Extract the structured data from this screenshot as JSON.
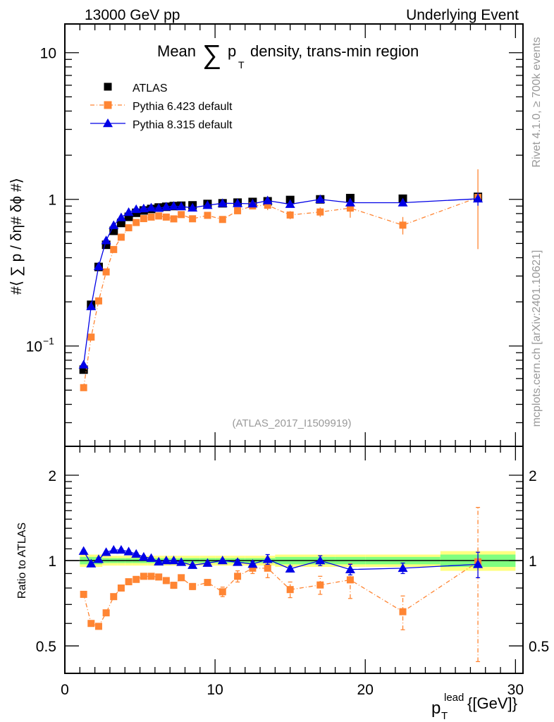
{
  "chart_data": {
    "type": "line",
    "header_left": "13000 GeV pp",
    "header_right": "Underlying Event",
    "title_prefix": "Mean",
    "title_sigma": "∑",
    "title_p": "p",
    "title_sub": "T",
    "title_suffix": "density, trans-min region",
    "ylabel": "#⟨ ∑ p  / δη# δϕ #⟩",
    "ylabel_sub": "T",
    "ratio_ylabel": "Ratio to ATLAS",
    "xlabel_p": "p",
    "xlabel_sup": "lead",
    "xlabel_sub": "T",
    "xlabel_unit": "{[GeV]}",
    "side_text_top": "Rivet 4.1.0, ≥ 700k events",
    "side_text_bottom": "mcplots.cern.ch [arXiv:2401.10621]",
    "analysis_id": "(ATLAS_2017_I1509919)",
    "xlim": [
      0,
      30.5
    ],
    "ylim_main": [
      0.0207,
      15.7
    ],
    "ylim_ratio": [
      0.4,
      2.53
    ],
    "yscale": "log",
    "x_ticks": [
      "0",
      "10",
      "20",
      "30"
    ],
    "y_ticks_main": [
      {
        "v": 0.1,
        "label": "10",
        "exp": "−1"
      },
      {
        "v": 1,
        "label": "1",
        "exp": ""
      },
      {
        "v": 10,
        "label": "10",
        "exp": ""
      }
    ],
    "y_ticks_ratio": [
      {
        "v": 0.5,
        "label": "0.5"
      },
      {
        "v": 1,
        "label": "1"
      },
      {
        "v": 2,
        "label": "2"
      }
    ],
    "legend": [
      {
        "name": "ATLAS",
        "color": "#000000",
        "marker": "square"
      },
      {
        "name": "Pythia 6.423 default",
        "color": "#ff8533",
        "marker": "square",
        "dash": "dashdot"
      },
      {
        "name": "Pythia 8.315 default",
        "color": "#0000e6",
        "marker": "triangle"
      }
    ],
    "x": [
      1.25,
      1.75,
      2.25,
      2.75,
      3.25,
      3.75,
      4.25,
      4.75,
      5.25,
      5.75,
      6.25,
      6.75,
      7.25,
      7.75,
      8.5,
      9.5,
      10.5,
      11.5,
      12.5,
      13.5,
      15,
      17,
      19,
      22.5,
      27.5
    ],
    "bin_edges": [
      1,
      1.5,
      2,
      2.5,
      3,
      3.5,
      4,
      4.5,
      5,
      5.5,
      6,
      6.5,
      7,
      7.5,
      8,
      9,
      10,
      11,
      12,
      13,
      14,
      16,
      18,
      20,
      25,
      30
    ],
    "series": [
      {
        "name": "ATLAS",
        "values": [
          0.069,
          0.191,
          0.346,
          0.49,
          0.61,
          0.69,
          0.76,
          0.81,
          0.84,
          0.86,
          0.88,
          0.89,
          0.9,
          0.905,
          0.91,
          0.93,
          0.94,
          0.95,
          0.96,
          0.97,
          0.99,
          1.0,
          1.02,
          1.01,
          1.04
        ],
        "ratio_band_yellow": [
          0.05,
          0.05,
          0.05,
          0.04,
          0.04,
          0.04,
          0.04,
          0.04,
          0.04,
          0.04,
          0.04,
          0.04,
          0.04,
          0.04,
          0.04,
          0.04,
          0.04,
          0.04,
          0.04,
          0.04,
          0.05,
          0.05,
          0.05,
          0.05,
          0.08
        ],
        "ratio_band_green": [
          0.03,
          0.03,
          0.03,
          0.02,
          0.02,
          0.02,
          0.02,
          0.02,
          0.02,
          0.02,
          0.02,
          0.02,
          0.02,
          0.02,
          0.02,
          0.02,
          0.02,
          0.02,
          0.02,
          0.02,
          0.03,
          0.03,
          0.03,
          0.03,
          0.05
        ]
      },
      {
        "name": "Pythia 6.423 default",
        "values": [
          0.052,
          0.115,
          0.203,
          0.32,
          0.455,
          0.552,
          0.64,
          0.695,
          0.739,
          0.757,
          0.77,
          0.757,
          0.736,
          0.787,
          0.737,
          0.778,
          0.729,
          0.836,
          0.902,
          0.912,
          0.782,
          0.82,
          0.872,
          0.667,
          1.03
        ],
        "ratio": [
          0.76,
          0.6,
          0.586,
          0.654,
          0.746,
          0.8,
          0.842,
          0.858,
          0.88,
          0.88,
          0.875,
          0.85,
          0.818,
          0.87,
          0.81,
          0.837,
          0.776,
          0.88,
          0.94,
          0.94,
          0.79,
          0.82,
          0.855,
          0.66,
          0.99
        ],
        "ratio_err": [
          0.01,
          0.01,
          0.01,
          0.01,
          0.01,
          0.01,
          0.01,
          0.01,
          0.01,
          0.01,
          0.01,
          0.02,
          0.02,
          0.02,
          0.02,
          0.02,
          0.03,
          0.04,
          0.04,
          0.07,
          0.05,
          0.06,
          0.12,
          0.09,
          0.55
        ]
      },
      {
        "name": "Pythia 8.315 default",
        "values": [
          0.0745,
          0.186,
          0.349,
          0.524,
          0.665,
          0.752,
          0.817,
          0.855,
          0.865,
          0.877,
          0.871,
          0.89,
          0.9,
          0.893,
          0.876,
          0.911,
          0.94,
          0.938,
          0.933,
          0.98,
          0.926,
          1.0,
          0.949,
          0.949,
          1.009
        ],
        "ratio": [
          1.08,
          0.975,
          1.01,
          1.07,
          1.09,
          1.09,
          1.075,
          1.055,
          1.03,
          1.02,
          0.99,
          1.0,
          1.0,
          0.987,
          0.963,
          0.98,
          1.0,
          0.987,
          0.972,
          1.01,
          0.935,
          1.0,
          0.93,
          0.94,
          0.97
        ],
        "ratio_err": [
          0.01,
          0.01,
          0.01,
          0.01,
          0.01,
          0.01,
          0.01,
          0.01,
          0.01,
          0.01,
          0.01,
          0.01,
          0.01,
          0.01,
          0.01,
          0.01,
          0.01,
          0.02,
          0.02,
          0.04,
          0.02,
          0.04,
          0.04,
          0.04,
          0.1
        ]
      }
    ]
  }
}
